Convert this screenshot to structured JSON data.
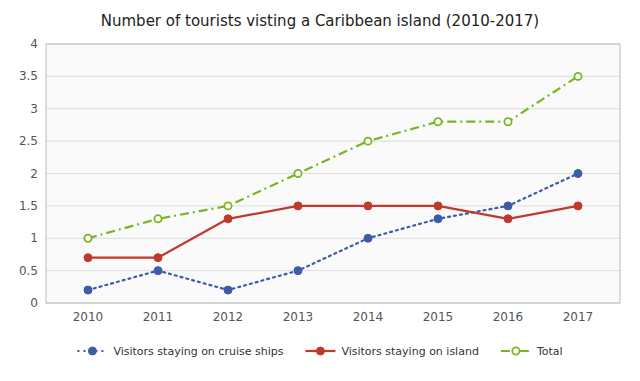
{
  "chart_data": {
    "type": "line",
    "title": "Number of tourists visting a Caribbean island (2010-2017)",
    "x": [
      2010,
      2011,
      2012,
      2013,
      2014,
      2015,
      2016,
      2017
    ],
    "xlim": [
      2009.4,
      2017.6
    ],
    "xticks": [
      2010,
      2011,
      2012,
      2013,
      2014,
      2015,
      2016,
      2017
    ],
    "series": [
      {
        "name": "Visitors staying on cruise ships",
        "color": "#3c5ca8",
        "line_style": "dotted",
        "marker": "circle",
        "values": [
          0.2,
          0.5,
          0.2,
          0.5,
          1.0,
          1.3,
          1.5,
          2.0
        ]
      },
      {
        "name": "Visitors staying on island",
        "color": "#c0392b",
        "line_style": "solid",
        "marker": "circle",
        "values": [
          0.7,
          0.7,
          1.3,
          1.5,
          1.5,
          1.5,
          1.3,
          1.5
        ]
      },
      {
        "name": "Total",
        "color": "#7ab520",
        "line_style": "dashdot",
        "marker": "open-circle",
        "values": [
          1.0,
          1.3,
          1.5,
          2.0,
          2.5,
          2.8,
          2.8,
          3.5
        ]
      }
    ],
    "ylim": [
      0,
      4
    ],
    "yticks": [
      0,
      0.5,
      1.0,
      1.5,
      2.0,
      2.5,
      3.0,
      3.5,
      4.0
    ],
    "grid": true,
    "legend": "bottom"
  }
}
